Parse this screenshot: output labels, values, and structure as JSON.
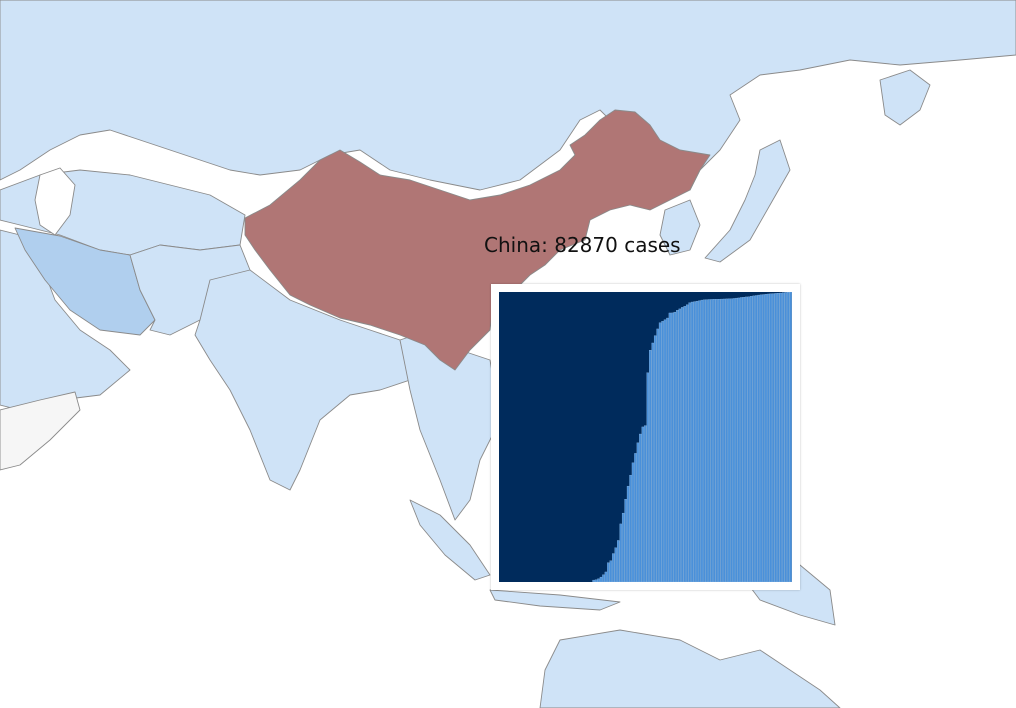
{
  "tooltip": {
    "label": "China: 82870 cases",
    "country": "China",
    "cases": 82870
  },
  "colors": {
    "ocean_land_default": "#cfe3f7",
    "highlight_china": "#b07675",
    "iran": "#b0cfee",
    "no_data": "#f6f6f6",
    "chart_background": "#002b5c",
    "chart_bar": "#4a90d9",
    "chart_bar_edge": "#9cc7f0"
  },
  "chart_data": {
    "type": "bar",
    "title": "",
    "xlabel": "",
    "ylabel": "",
    "note": "Cumulative daily case counts for China shown as thin bars over a dark background",
    "ylim": [
      0,
      83000
    ],
    "values": [
      0,
      0,
      0,
      0,
      0,
      0,
      0,
      0,
      0,
      0,
      0,
      0,
      0,
      0,
      0,
      0,
      0,
      0,
      0,
      0,
      0,
      0,
      0,
      0,
      0,
      0,
      0,
      0,
      0,
      0,
      0,
      0,
      0,
      0,
      0,
      0,
      0,
      0,
      548,
      643,
      920,
      1406,
      2075,
      2877,
      5509,
      6087,
      8141,
      9802,
      11891,
      16630,
      19716,
      23707,
      27440,
      30587,
      34110,
      36814,
      39829,
      42354,
      44386,
      44759,
      59895,
      66358,
      68413,
      70513,
      72434,
      74211,
      74619,
      75077,
      75550,
      77001,
      77022,
      77241,
      77754,
      78166,
      78600,
      78928,
      79356,
      79932,
      80136,
      80261,
      80386,
      80537,
      80690,
      80770,
      80823,
      80860,
      80887,
      80921,
      80932,
      80945,
      80977,
      81003,
      81033,
      81058,
      81102,
      81156,
      81250,
      81305,
      81435,
      81498,
      81591,
      81661,
      81782,
      81897,
      81999,
      82122,
      82198,
      82279,
      82361,
      82432,
      82511,
      82543,
      82602,
      82665,
      82718,
      82809,
      82883,
      82941,
      83014
    ]
  }
}
